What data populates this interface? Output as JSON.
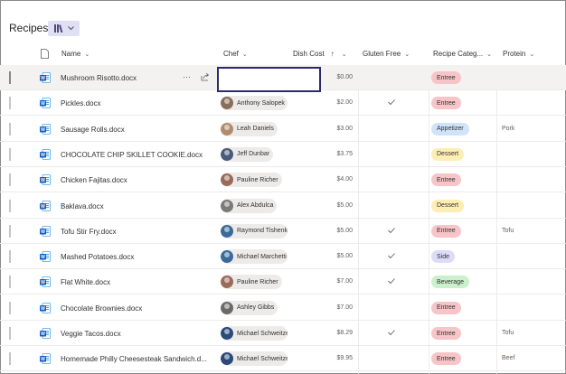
{
  "library": {
    "title": "Recipes"
  },
  "columns": {
    "name": "Name",
    "chef": "Chef",
    "dish_cost": "Dish Cost",
    "gluten_free": "Gluten Free",
    "recipe_category": "Recipe Categ...",
    "protein": "Protein"
  },
  "colors": {
    "Entree": "#f7c4c8",
    "Appetizer": "#cfe4fa",
    "Dessert": "#fdeeb3",
    "Side": "#dcdcf7",
    "Beverage": "#caf0cc"
  },
  "rows": [
    {
      "name": "Mushroom Risotto.docx",
      "chef": "",
      "cost": "$0.00",
      "gluten_free": false,
      "category": "Entree",
      "protein": "",
      "selected": true,
      "avatar": ""
    },
    {
      "name": "Pickles.docx",
      "chef": "Anthony Salopek",
      "cost": "$2.00",
      "gluten_free": true,
      "category": "Entree",
      "protein": "",
      "avatar": "#8a6d5a"
    },
    {
      "name": "Sausage Rolls.docx",
      "chef": "Leah Daniels",
      "cost": "$3.00",
      "gluten_free": false,
      "category": "Appetizer",
      "protein": "Pork",
      "avatar": "#b08c6c"
    },
    {
      "name": "CHOCOLATE CHIP SKILLET COOKIE.docx",
      "chef": "Jeff Dunbar",
      "cost": "$3.75",
      "gluten_free": false,
      "category": "Dessert",
      "protein": "",
      "avatar": "#4a5a7a"
    },
    {
      "name": "Chicken Fajitas.docx",
      "chef": "Pauline Richer",
      "cost": "$4.00",
      "gluten_free": false,
      "category": "Entree",
      "protein": "",
      "avatar": "#9a6a5a"
    },
    {
      "name": "Baklava.docx",
      "chef": "Alex Abdulca",
      "cost": "$5.00",
      "gluten_free": false,
      "category": "Dessert",
      "protein": "",
      "avatar": "#7a7a7a"
    },
    {
      "name": "Tofu Stir Fry.docx",
      "chef": "Raymond Tishenko",
      "cost": "$5.00",
      "gluten_free": true,
      "category": "Entree",
      "protein": "Tofu",
      "avatar": "#3a6a9a"
    },
    {
      "name": "Mashed Potatoes.docx",
      "chef": "Michael Marchetti",
      "cost": "$5.00",
      "gluten_free": true,
      "category": "Side",
      "protein": "",
      "avatar": "#3a6a9a"
    },
    {
      "name": "Flat White.docx",
      "chef": "Pauline Richer",
      "cost": "$7.00",
      "gluten_free": true,
      "category": "Beverage",
      "protein": "",
      "avatar": "#9a6a5a"
    },
    {
      "name": "Chocolate Brownies.docx",
      "chef": "Ashley Gibbs",
      "cost": "$7.00",
      "gluten_free": false,
      "category": "Entree",
      "protein": "",
      "avatar": "#6a6a6a"
    },
    {
      "name": "Veggie Tacos.docx",
      "chef": "Michael Schweitzer",
      "cost": "$8.29",
      "gluten_free": true,
      "category": "Entree",
      "protein": "Tofu",
      "avatar": "#2a4a7a"
    },
    {
      "name": "Homemade Philly Cheesesteak Sandwich.d...",
      "chef": "Michael Schweitzer",
      "cost": "$9.95",
      "gluten_free": false,
      "category": "Entree",
      "protein": "Beef",
      "avatar": "#2a4a7a"
    }
  ]
}
